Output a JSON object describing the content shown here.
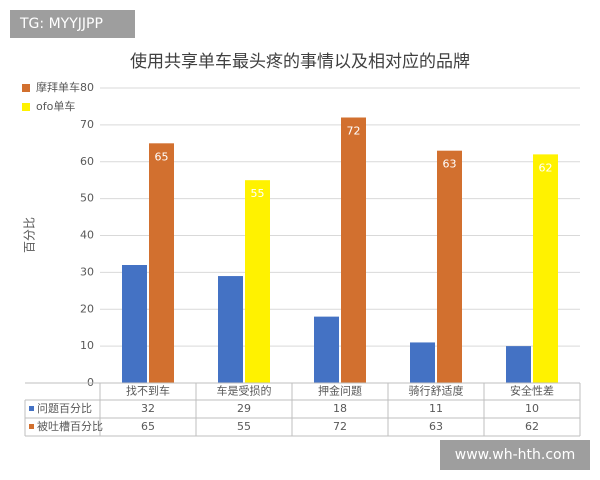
{
  "chart_data": {
    "type": "bar",
    "title": "使用共享单车最头疼的事情以及相对应的品牌",
    "y_label": "百分比",
    "categories": [
      "找不到车",
      "车是受损的",
      "押金问题",
      "骑行舒适度",
      "安全性差"
    ],
    "series": [
      {
        "name": "问题百分比",
        "color": "#4472c4",
        "values": [
          32,
          29,
          18,
          11,
          10
        ]
      },
      {
        "name": "被吐槽百分比",
        "color": "#d2702f",
        "colors": [
          "#d2702f",
          "#fff200",
          "#d2702f",
          "#d2702f",
          "#fff200"
        ],
        "values": [
          65,
          55,
          72,
          63,
          62
        ],
        "data_labels": true
      }
    ],
    "legend": [
      {
        "label": "摩拜单车",
        "color": "#d2702f"
      },
      {
        "label": "ofo单车",
        "color": "#fff200"
      }
    ],
    "ylim": [
      0,
      80
    ],
    "yticks": [
      0,
      10,
      20,
      30,
      40,
      50,
      60,
      70,
      80
    ],
    "grid": true,
    "data_table": true
  },
  "watermarks": [
    "TG: MYYJJPP",
    "www.wh-hth.com"
  ]
}
